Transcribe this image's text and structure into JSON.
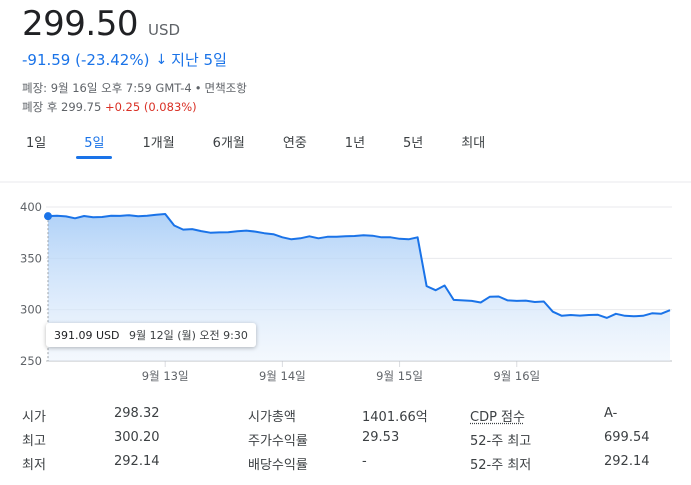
{
  "quote": {
    "price": "299.50",
    "currency": "USD",
    "change": "-91.59 (-23.42%)",
    "change_arrow": "↓",
    "period": "지난 5일",
    "market_close": "폐장: 9월 16일 오후 7:59 GMT-4",
    "disclaimer": "면책조항",
    "after_hours_label": "폐장 후 299.75",
    "after_hours_change": "+0.25 (0.083%)"
  },
  "tabs": [
    {
      "label": "1일",
      "active": false
    },
    {
      "label": "5일",
      "active": true
    },
    {
      "label": "1개월",
      "active": false
    },
    {
      "label": "6개월",
      "active": false
    },
    {
      "label": "연중",
      "active": false
    },
    {
      "label": "1년",
      "active": false
    },
    {
      "label": "5년",
      "active": false
    },
    {
      "label": "최대",
      "active": false
    }
  ],
  "tooltip": {
    "price": "391.09 USD",
    "date": "9월 12일 (월) 오전 9:30"
  },
  "chart_data": {
    "type": "area",
    "color": "#1a73e8",
    "y_ticks": [
      250,
      300,
      350,
      400
    ],
    "y_tick_labels": [
      "250",
      "300",
      "350",
      "400"
    ],
    "ylim": [
      250,
      400
    ],
    "x_labels": [
      "9월 13일",
      "9월 14일",
      "9월 15일",
      "9월 16일"
    ],
    "x_label_index": [
      13,
      26,
      39,
      52
    ],
    "grid": true,
    "values": [
      391.09,
      391.5,
      390.8,
      389.0,
      391.2,
      390.0,
      390.3,
      391.5,
      391.3,
      392.0,
      391.0,
      391.4,
      392.5,
      393.2,
      382.0,
      378.0,
      378.5,
      376.5,
      375.0,
      375.3,
      375.5,
      376.3,
      377.0,
      376.0,
      374.5,
      373.5,
      370.5,
      368.5,
      369.5,
      371.5,
      369.5,
      371.0,
      371.0,
      371.5,
      371.8,
      372.5,
      372.0,
      370.5,
      370.5,
      369.0,
      368.5,
      370.5,
      323.0,
      319.0,
      323.5,
      309.5,
      309.0,
      308.5,
      307.0,
      312.5,
      312.8,
      309.0,
      308.5,
      308.8,
      307.5,
      308.0,
      298.0,
      294.0,
      294.8,
      294.2,
      294.8,
      295.0,
      292.0,
      296.0,
      294.0,
      293.5,
      294.0,
      296.5,
      296.0,
      299.5
    ]
  },
  "stats": [
    {
      "l1": "시가",
      "v1": "298.32",
      "l2": "시가총액",
      "v2": "1401.66억",
      "l3": "CDP 점수",
      "v3": "A-"
    },
    {
      "l1": "최고",
      "v1": "300.20",
      "l2": "주가수익률",
      "v2": "29.53",
      "l3": "52-주 최고",
      "v3": "699.54"
    },
    {
      "l1": "최저",
      "v1": "292.14",
      "l2": "배당수익률",
      "v2": "-",
      "l3": "52-주 최저",
      "v3": "292.14"
    }
  ]
}
